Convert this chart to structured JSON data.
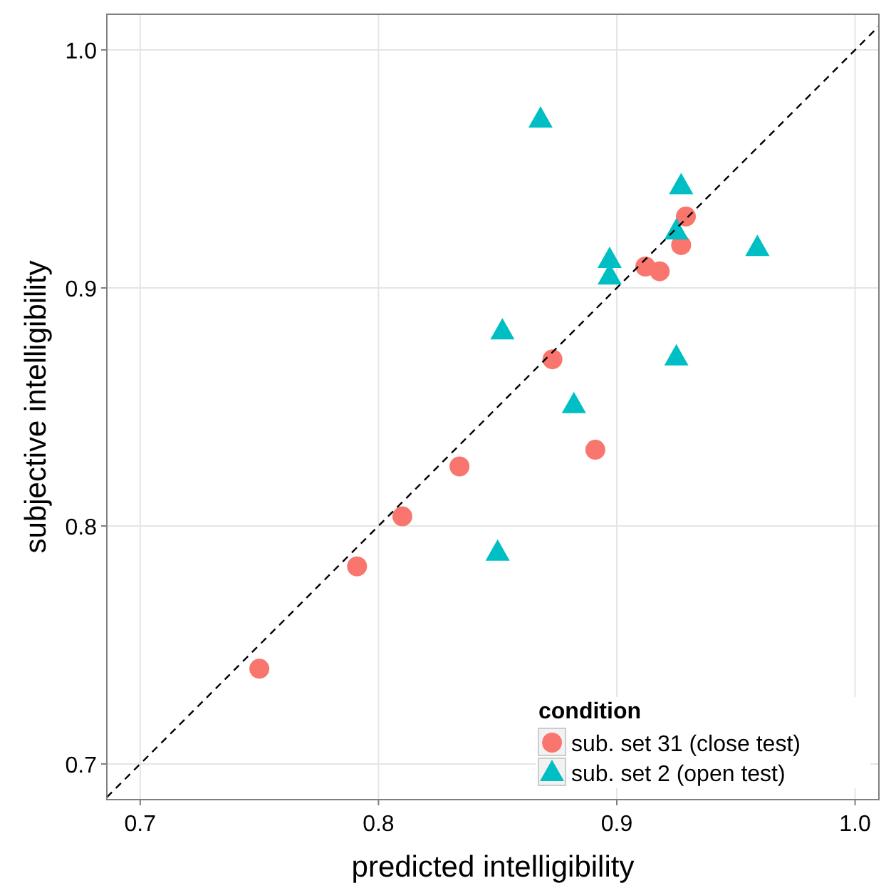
{
  "chart_data": {
    "type": "scatter",
    "xlabel": "predicted intelligibility",
    "ylabel": "subjective intelligibility",
    "legend_title": "condition",
    "legend": "bottom right",
    "grid": true,
    "xlim": [
      0.686,
      1.01
    ],
    "ylim": [
      0.685,
      1.015
    ],
    "xticks": [
      0.7,
      0.8,
      0.9,
      {
        "value": 1.0,
        "label": "1.0"
      }
    ],
    "yticks": [
      0.7,
      0.8,
      0.9,
      {
        "value": 1.0,
        "label": "1.0"
      }
    ],
    "series": [
      {
        "name": "sub. set 31 (close test)",
        "color": "#f8766d",
        "marker": "circle",
        "x": [
          0.75,
          0.791,
          0.81,
          0.834,
          0.873,
          0.891,
          0.912,
          0.918,
          0.927,
          0.929
        ],
        "values": [
          0.74,
          0.783,
          0.804,
          0.825,
          0.87,
          0.832,
          0.909,
          0.907,
          0.918,
          0.93
        ]
      },
      {
        "name": "sub. set 2 (open test)",
        "color": "#00bfc4",
        "marker": "triangle",
        "x": [
          0.868,
          0.852,
          0.85,
          0.882,
          0.897,
          0.897,
          0.925,
          0.925,
          0.927,
          0.959
        ],
        "values": [
          0.971,
          0.882,
          0.789,
          0.851,
          0.912,
          0.905,
          0.871,
          0.924,
          0.943,
          0.917
        ]
      },
      {
        "type": "line",
        "color": "#000000",
        "line_style": "dashed",
        "x": [
          0.686,
          1.01
        ],
        "values": [
          0.686,
          1.01
        ]
      }
    ]
  }
}
